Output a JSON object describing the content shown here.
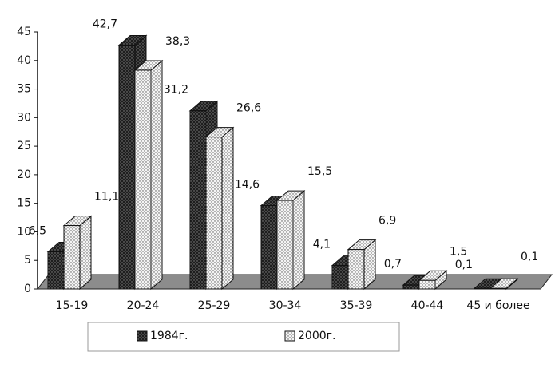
{
  "chart_data": {
    "type": "bar3d",
    "categories": [
      "15-19",
      "20-24",
      "25-29",
      "30-34",
      "35-39",
      "40-44",
      "45 и более"
    ],
    "series": [
      {
        "name": "1984г.",
        "color": "#1e1e1e",
        "values": [
          6.5,
          42.7,
          31.2,
          14.6,
          4.1,
          0.7,
          0.1
        ],
        "value_labels": [
          "6,5",
          "42,7",
          "31,2",
          "14,6",
          "4,1",
          "0,7",
          "0,1"
        ]
      },
      {
        "name": "2000г.",
        "color": "#f4f4f4",
        "values": [
          11.1,
          38.3,
          26.6,
          15.5,
          6.9,
          1.5,
          0.1
        ],
        "value_labels": [
          "11,1",
          "38,3",
          "26,6",
          "15,5",
          "6,9",
          "1,5",
          "0,1"
        ]
      }
    ],
    "ylim": [
      0,
      45
    ],
    "yticks": [
      0,
      5,
      10,
      15,
      20,
      25,
      30,
      35,
      40,
      45
    ],
    "legend": "bottom"
  }
}
